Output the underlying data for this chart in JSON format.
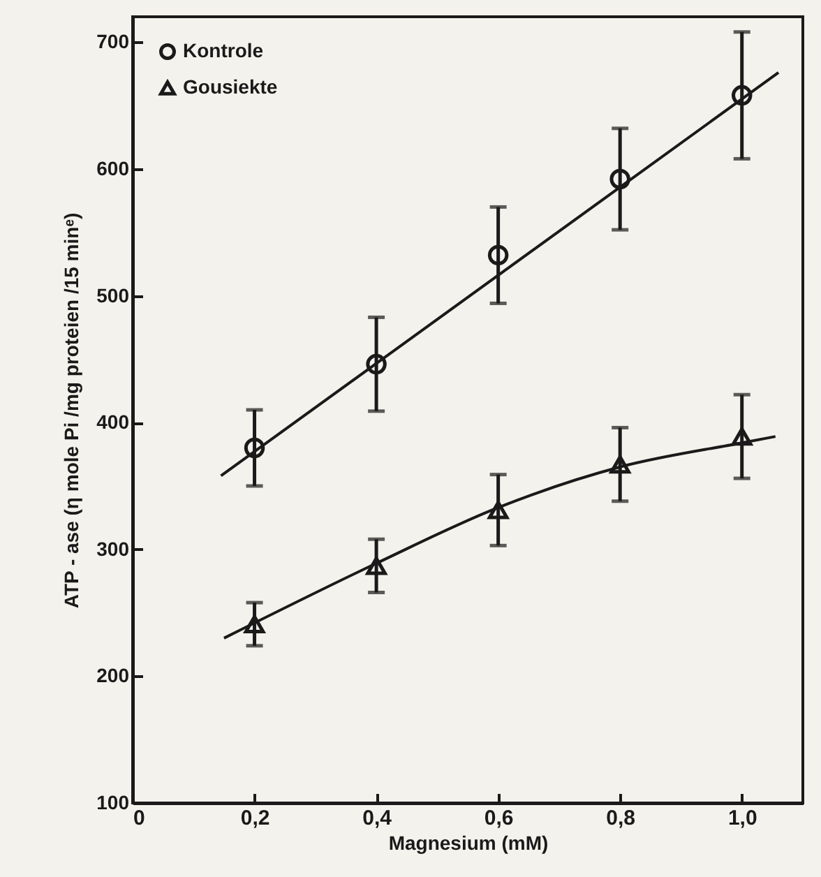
{
  "chart_data": {
    "type": "scatter",
    "xlabel": "Magnesium (mM)",
    "ylabel": "ATP - ase (η mole Pi /mg proteien /15 minᵉ)",
    "xlim": [
      0,
      1.1
    ],
    "ylim": [
      100,
      720
    ],
    "xticks": [
      0,
      {
        "value": 0.2,
        "label": "0,2"
      },
      {
        "value": 0.4,
        "label": "0,4"
      },
      {
        "value": 0.6,
        "label": "0,6"
      },
      {
        "value": 0.8,
        "label": "0,8"
      },
      {
        "value": 1.0,
        "label": "1,0"
      }
    ],
    "yticks": [
      100,
      200,
      300,
      400,
      500,
      600,
      700
    ],
    "grid": false,
    "legend": "top left",
    "series": [
      {
        "name": "Kontrole",
        "type": "scatter",
        "marker": "circle",
        "color": "#1a1a1a",
        "x": [
          0.2,
          0.4,
          0.6,
          0.8,
          1.0
        ],
        "values": [
          380,
          446,
          532,
          592,
          658
        ],
        "errors": [
          30,
          37,
          38,
          40,
          50
        ]
      },
      {
        "name": "Gousiekte",
        "type": "scatter",
        "marker": "triangle",
        "color": "#1a1a1a",
        "x": [
          0.2,
          0.4,
          0.6,
          0.8,
          1.0
        ],
        "values": [
          241,
          287,
          331,
          367,
          389
        ],
        "errors": [
          17,
          21,
          28,
          29,
          33
        ]
      },
      {
        "type": "line",
        "marker": "none",
        "color": "#1a1a1a",
        "x": [
          0.145,
          1.06
        ],
        "values": [
          358,
          676
        ]
      },
      {
        "type": "line",
        "marker": "none",
        "color": "#1a1a1a",
        "x": [
          0.15,
          0.4,
          0.6,
          0.8,
          1.0,
          1.055
        ],
        "values": [
          230,
          289,
          333,
          365,
          384,
          389
        ]
      }
    ]
  }
}
